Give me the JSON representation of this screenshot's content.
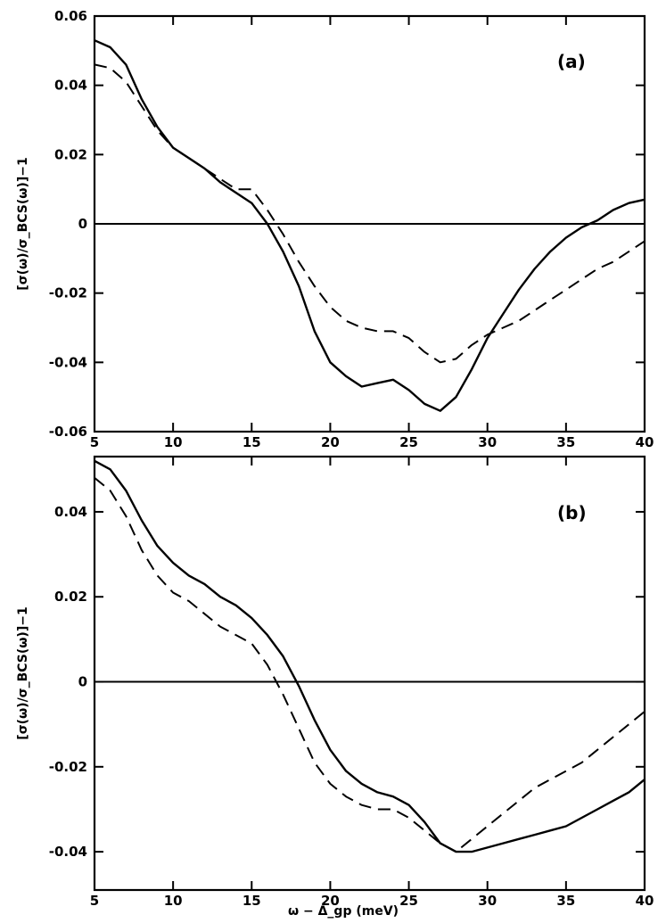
{
  "chart_data": [
    {
      "type": "line",
      "panel_label": "(a)",
      "xlabel": "",
      "ylabel": "[σ(ω)/σ_BCS(ω)]−1",
      "xlim": [
        5,
        40
      ],
      "ylim": [
        -0.06,
        0.06
      ],
      "xticks": [
        5,
        10,
        15,
        20,
        25,
        30,
        35,
        40
      ],
      "xtick_labels": [
        "5",
        "10",
        "15",
        "20",
        "25",
        "30",
        "35",
        "40"
      ],
      "yticks": [
        -0.06,
        -0.04,
        -0.02,
        0,
        0.02,
        0.04,
        0.06
      ],
      "ytick_labels": [
        "-0.06",
        "-0.04",
        "-0.02",
        "0",
        "0.02",
        "0.04",
        "0.06"
      ],
      "reference_line": 0,
      "series": [
        {
          "style": "solid",
          "x": [
            5,
            6,
            7,
            8,
            9,
            10,
            11,
            12,
            13,
            14,
            15,
            16,
            17,
            18,
            19,
            20,
            21,
            22,
            23,
            24,
            25,
            26,
            27,
            28,
            29,
            30,
            31,
            32,
            33,
            34,
            35,
            36,
            37,
            38,
            39,
            40
          ],
          "y": [
            0.053,
            0.051,
            0.046,
            0.036,
            0.028,
            0.022,
            0.019,
            0.016,
            0.012,
            0.009,
            0.006,
            0.0,
            -0.008,
            -0.018,
            -0.031,
            -0.04,
            -0.044,
            -0.047,
            -0.046,
            -0.045,
            -0.048,
            -0.052,
            -0.054,
            -0.05,
            -0.042,
            -0.033,
            -0.026,
            -0.019,
            -0.013,
            -0.008,
            -0.004,
            -0.001,
            0.001,
            0.004,
            0.006,
            0.007
          ]
        },
        {
          "style": "dashed",
          "x": [
            5,
            6,
            7,
            8,
            9,
            10,
            11,
            12,
            13,
            14,
            15,
            16,
            17,
            18,
            19,
            20,
            21,
            22,
            23,
            24,
            25,
            26,
            27,
            28,
            29,
            30,
            31,
            32,
            33,
            34,
            35,
            36,
            37,
            38,
            39,
            40
          ],
          "y": [
            0.046,
            0.045,
            0.041,
            0.034,
            0.027,
            0.022,
            0.019,
            0.016,
            0.013,
            0.01,
            0.01,
            0.004,
            -0.003,
            -0.011,
            -0.018,
            -0.024,
            -0.028,
            -0.03,
            -0.031,
            -0.031,
            -0.033,
            -0.037,
            -0.04,
            -0.039,
            -0.035,
            -0.032,
            -0.03,
            -0.028,
            -0.025,
            -0.022,
            -0.019,
            -0.016,
            -0.013,
            -0.011,
            -0.008,
            -0.005
          ]
        }
      ]
    },
    {
      "type": "line",
      "panel_label": "(b)",
      "xlabel": "ω − Δ_gp (meV)",
      "ylabel": "[σ(ω)/σ_BCS(ω)]−1",
      "xlim": [
        5,
        40
      ],
      "ylim": [
        -0.049,
        0.053
      ],
      "xticks": [
        5,
        10,
        15,
        20,
        25,
        30,
        35,
        40
      ],
      "xtick_labels": [
        "5",
        "10",
        "15",
        "20",
        "25",
        "30",
        "35",
        "40"
      ],
      "yticks": [
        -0.04,
        -0.02,
        0,
        0.02,
        0.04
      ],
      "ytick_labels": [
        "-0.04",
        "-0.02",
        "0",
        "0.02",
        "0.04"
      ],
      "reference_line": 0,
      "series": [
        {
          "style": "solid",
          "x": [
            5,
            6,
            7,
            8,
            9,
            10,
            11,
            12,
            13,
            14,
            15,
            16,
            17,
            18,
            19,
            20,
            21,
            22,
            23,
            24,
            25,
            26,
            27,
            28,
            29,
            30,
            31,
            32,
            33,
            34,
            35,
            36,
            37,
            38,
            39,
            40
          ],
          "y": [
            0.052,
            0.05,
            0.045,
            0.038,
            0.032,
            0.028,
            0.025,
            0.023,
            0.02,
            0.018,
            0.015,
            0.011,
            0.006,
            -0.001,
            -0.009,
            -0.016,
            -0.021,
            -0.024,
            -0.026,
            -0.027,
            -0.029,
            -0.033,
            -0.038,
            -0.04,
            -0.04,
            -0.039,
            -0.038,
            -0.037,
            -0.036,
            -0.035,
            -0.034,
            -0.032,
            -0.03,
            -0.028,
            -0.026,
            -0.023
          ]
        },
        {
          "style": "dashed",
          "x": [
            5,
            6,
            7,
            8,
            9,
            10,
            11,
            12,
            13,
            14,
            15,
            16,
            17,
            18,
            19,
            20,
            21,
            22,
            23,
            24,
            25,
            26,
            27,
            28,
            29,
            30,
            31,
            32,
            33,
            34,
            35,
            36,
            37,
            38,
            39,
            40
          ],
          "y": [
            0.048,
            0.045,
            0.039,
            0.031,
            0.025,
            0.021,
            0.019,
            0.016,
            0.013,
            0.011,
            0.009,
            0.004,
            -0.003,
            -0.011,
            -0.019,
            -0.024,
            -0.027,
            -0.029,
            -0.03,
            -0.03,
            -0.032,
            -0.035,
            -0.038,
            -0.04,
            -0.037,
            -0.034,
            -0.031,
            -0.028,
            -0.025,
            -0.023,
            -0.021,
            -0.019,
            -0.016,
            -0.013,
            -0.01,
            -0.007
          ]
        }
      ]
    }
  ]
}
